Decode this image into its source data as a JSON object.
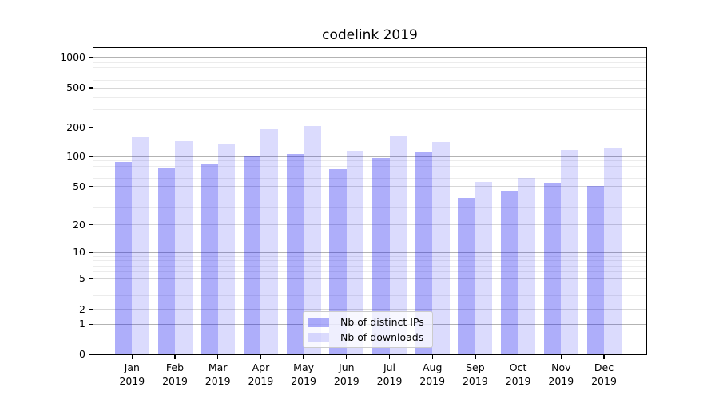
{
  "title": "codelink 2019",
  "legend": {
    "items": [
      {
        "label": "Nb of distinct IPs",
        "color": "#ababfa"
      },
      {
        "label": "Nb of downloads",
        "color": "#dadafc"
      }
    ]
  },
  "x_axis": {
    "months": [
      "Jan",
      "Feb",
      "Mar",
      "Apr",
      "May",
      "Jun",
      "Jul",
      "Aug",
      "Sep",
      "Oct",
      "Nov",
      "Dec"
    ],
    "year": "2019"
  },
  "y_axis": {
    "tick_labels": [
      "0",
      "1",
      "2",
      "5",
      "10",
      "20",
      "50",
      "100",
      "200",
      "500",
      "1000"
    ]
  },
  "colors": {
    "bar_distinct_ips": "#ababfa",
    "bar_downloads": "#dadafc",
    "grid_major": "#b3b3b3",
    "grid_minor": "#ececec",
    "spine": "#000000"
  },
  "chart_data": {
    "type": "bar",
    "title": "codelink 2019",
    "categories": [
      "Jan 2019",
      "Feb 2019",
      "Mar 2019",
      "Apr 2019",
      "May 2019",
      "Jun 2019",
      "Jul 2019",
      "Aug 2019",
      "Sep 2019",
      "Oct 2019",
      "Nov 2019",
      "Dec 2019"
    ],
    "series": [
      {
        "name": "Nb of distinct IPs",
        "values": [
          88,
          78,
          85,
          103,
          107,
          74,
          97,
          111,
          38,
          45,
          55,
          51
        ]
      },
      {
        "name": "Nb of downloads",
        "values": [
          160,
          144,
          134,
          193,
          207,
          115,
          166,
          143,
          56,
          61,
          117,
          121
        ]
      }
    ],
    "xlabel": "",
    "ylabel": "",
    "y_scale": "symlog (linear 0-1, logarithmic above 1)",
    "y_ticks": [
      0,
      1,
      2,
      5,
      10,
      20,
      50,
      100,
      200,
      500,
      1000
    ],
    "ylim": [
      0,
      1250
    ],
    "grid": "horizontal major and minor gridlines",
    "legend_position": "lower center (inside axes)"
  }
}
